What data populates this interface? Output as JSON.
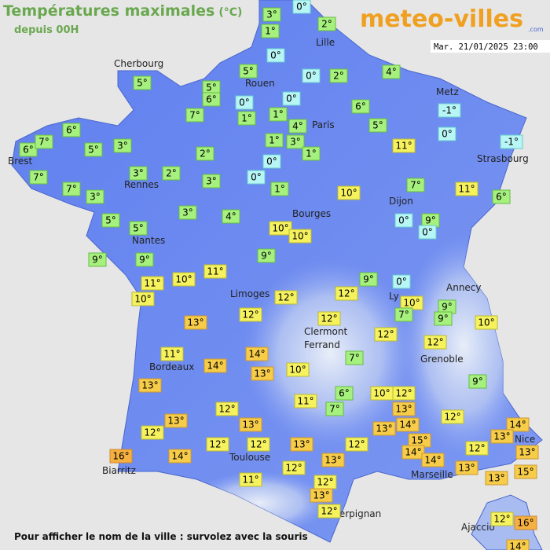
{
  "header": {
    "title": "Températures maximales",
    "unit": "(°C)",
    "subtitle": "depuis 00H",
    "brand": "meteo-villes",
    "brand_suffix": ".com",
    "datetime": "Mar. 21/01/2025 23:00"
  },
  "cities": [
    "Cherbourg",
    "Lille",
    "Rouen",
    "Paris",
    "Metz",
    "Strasbourg",
    "Brest",
    "Rennes",
    "Dijon",
    "Bourges",
    "Nantes",
    "Annecy",
    "Ly",
    "Limoges",
    "Clermont",
    "Ferrand",
    "Grenoble",
    "Bordeaux",
    "Nice",
    "Toulouse",
    "Marseille",
    "Biarritz",
    "Perpignan",
    "Ajaccio"
  ],
  "temperatures": [
    "3°",
    "0°",
    "1°",
    "2°",
    "0°",
    "5°",
    "0°",
    "2°",
    "4°",
    "5°",
    "5°",
    "6°",
    "7°",
    "0°",
    "0°",
    "1°",
    "1°",
    "4°",
    "6°",
    "5°",
    "-1°",
    "0°",
    "11°",
    "-1°",
    "6°",
    "6°",
    "7°",
    "5°",
    "3°",
    "2°",
    "1°",
    "3°",
    "1°",
    "0°",
    "0°",
    "3°",
    "2°",
    "3°",
    "7°",
    "7°",
    "3°",
    "1°",
    "10°",
    "7°",
    "11°",
    "6°",
    "5°",
    "5°",
    "3°",
    "4°",
    "10°",
    "10°",
    "0°",
    "9°",
    "0°",
    "9°",
    "9°",
    "9°",
    "9°",
    "0°",
    "11°",
    "10°",
    "11°",
    "10°",
    "12°",
    "12°",
    "10°",
    "9°",
    "7°",
    "9°",
    "10°",
    "12°",
    "12°",
    "13°",
    "12°",
    "12°",
    "11°",
    "14°",
    "7°",
    "14°",
    "13°",
    "10°",
    "13°",
    "9°",
    "6°",
    "10°",
    "12°",
    "11°",
    "7°",
    "12°",
    "13°",
    "12°",
    "13°",
    "13°",
    "13°",
    "14°",
    "14°",
    "13°",
    "12°",
    "12°",
    "12°",
    "13°",
    "12°",
    "15°",
    "14°",
    "12°",
    "13°",
    "16°",
    "14°",
    "13°",
    "14°",
    "13°",
    "15°",
    "12°",
    "13°",
    "11°",
    "12°",
    "13°",
    "12°",
    "12°",
    "16°",
    "14°"
  ],
  "footer": "Pour afficher le nom de la ville : survolez avec la souris"
}
